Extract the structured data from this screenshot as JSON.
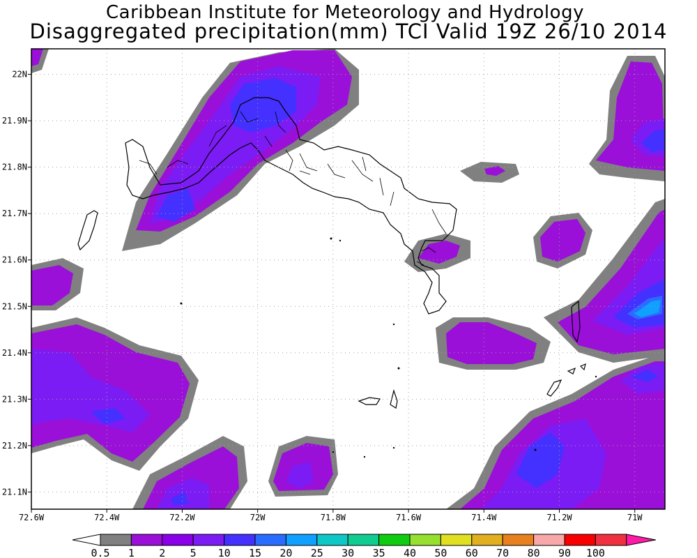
{
  "title": {
    "line1": "Caribbean Institute for Meteorology and Hydrology",
    "line2": "Disaggregated precipitation(mm) TCI Valid 19Z 26/10 2014"
  },
  "axes": {
    "x_ticks": [
      {
        "label": "72.6W",
        "lon": -72.6
      },
      {
        "label": "72.4W",
        "lon": -72.4
      },
      {
        "label": "72.2W",
        "lon": -72.2
      },
      {
        "label": "72W",
        "lon": -72.0
      },
      {
        "label": "71.8W",
        "lon": -71.8
      },
      {
        "label": "71.6W",
        "lon": -71.6
      },
      {
        "label": "71.4W",
        "lon": -71.4
      },
      {
        "label": "71.2W",
        "lon": -71.2
      },
      {
        "label": "71W",
        "lon": -71.0
      }
    ],
    "y_ticks": [
      {
        "label": "22N",
        "lat": 22.0
      },
      {
        "label": "21.9N",
        "lat": 21.9
      },
      {
        "label": "21.8N",
        "lat": 21.8
      },
      {
        "label": "21.7N",
        "lat": 21.7
      },
      {
        "label": "21.6N",
        "lat": 21.6
      },
      {
        "label": "21.5N",
        "lat": 21.5
      },
      {
        "label": "21.4N",
        "lat": 21.4
      },
      {
        "label": "21.3N",
        "lat": 21.3
      },
      {
        "label": "21.2N",
        "lat": 21.2
      },
      {
        "label": "21.1N",
        "lat": 21.1
      }
    ],
    "lon_range": [
      -72.6,
      -70.92
    ],
    "lat_range": [
      21.063,
      22.055
    ],
    "grid": true
  },
  "colorbar": {
    "labels": [
      "0.5",
      "1",
      "2",
      "5",
      "10",
      "15",
      "20",
      "25",
      "30",
      "35",
      "40",
      "50",
      "60",
      "70",
      "80",
      "90",
      "100"
    ],
    "colors": [
      "#808080",
      "#9a10d8",
      "#8a00e8",
      "#7c1cf4",
      "#4430ff",
      "#2a6cff",
      "#10a0ff",
      "#0ec8c8",
      "#10cc90",
      "#10cc10",
      "#98e030",
      "#e0e020",
      "#e0b020",
      "#e88020",
      "#f8a8a8",
      "#f80000",
      "#f03040"
    ],
    "low_color": "#ffffff",
    "high_color": "#ff1aa8"
  },
  "colors": {
    "gray": "#808080",
    "purple": "#9a10d8",
    "violet": "#8a00e8",
    "indigo": "#7c1cf4",
    "blue": "#4430ff",
    "sky": "#2a6cff",
    "cyan": "#10a0ff"
  }
}
